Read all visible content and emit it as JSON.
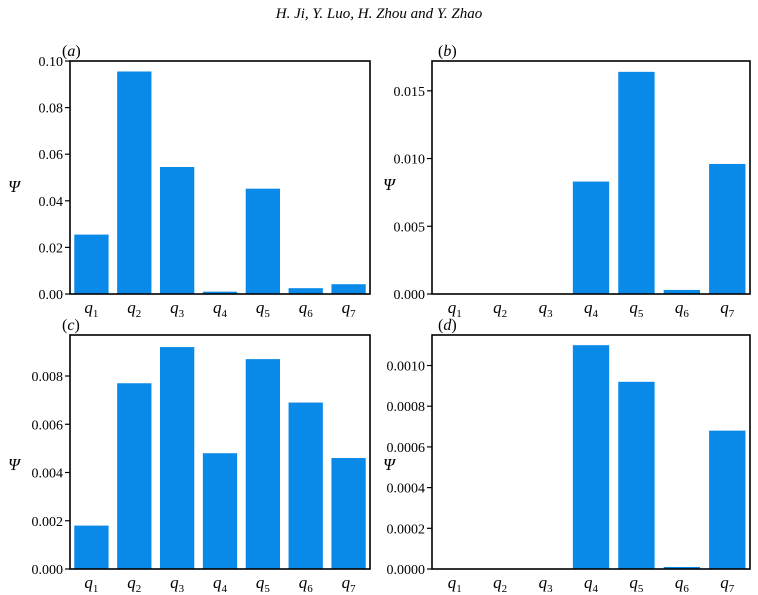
{
  "header": {
    "text": "H. Ji, Y. Luo, H. Zhou and Y. Zhao"
  },
  "chart_data": [
    {
      "type": "bar",
      "panel_label": "(a)",
      "ylabel": "Ψ",
      "categories": [
        "q1",
        "q2",
        "q3",
        "q4",
        "q5",
        "q6",
        "q7"
      ],
      "values": [
        0.0255,
        0.0955,
        0.0545,
        0.001,
        0.0452,
        0.0025,
        0.0042
      ],
      "ylim": [
        0,
        0.1
      ],
      "yticks": [
        0.0,
        0.02,
        0.04,
        0.06,
        0.08,
        0.1
      ],
      "ytick_labels": [
        "0.00",
        "0.02",
        "0.04",
        "0.06",
        "0.08",
        "0.10"
      ],
      "color": "#0a8ae8",
      "grid": false
    },
    {
      "type": "bar",
      "panel_label": "(b)",
      "ylabel": "Ψ",
      "categories": [
        "q1",
        "q2",
        "q3",
        "q4",
        "q5",
        "q6",
        "q7"
      ],
      "values": [
        0,
        0,
        0,
        0.0083,
        0.0164,
        0.0003,
        0.0096
      ],
      "ylim": [
        0,
        0.0172
      ],
      "yticks": [
        0.0,
        0.005,
        0.01,
        0.015
      ],
      "ytick_labels": [
        "0.000",
        "0.005",
        "0.010",
        "0.015"
      ],
      "color": "#0a8ae8",
      "grid": false
    },
    {
      "type": "bar",
      "panel_label": "(c)",
      "ylabel": "Ψ",
      "categories": [
        "q1",
        "q2",
        "q3",
        "q4",
        "q5",
        "q6",
        "q7"
      ],
      "values": [
        0.0018,
        0.0077,
        0.0092,
        0.0048,
        0.0087,
        0.0069,
        0.0046
      ],
      "ylim": [
        0,
        0.0097
      ],
      "yticks": [
        0.0,
        0.002,
        0.004,
        0.006,
        0.008
      ],
      "ytick_labels": [
        "0.000",
        "0.002",
        "0.004",
        "0.006",
        "0.008"
      ],
      "color": "#0a8ae8",
      "grid": false
    },
    {
      "type": "bar",
      "panel_label": "(d)",
      "ylabel": "Ψ",
      "categories": [
        "q1",
        "q2",
        "q3",
        "q4",
        "q5",
        "q6",
        "q7"
      ],
      "values": [
        0,
        0,
        0,
        0.0011,
        0.00092,
        1e-05,
        0.00068
      ],
      "ylim": [
        0,
        0.00115
      ],
      "yticks": [
        0.0,
        0.0002,
        0.0004,
        0.0006,
        0.0008,
        0.001
      ],
      "ytick_labels": [
        "0.0000",
        "0.0002",
        "0.0004",
        "0.0006",
        "0.0008",
        "0.0010"
      ],
      "color": "#0a8ae8",
      "grid": false
    }
  ]
}
